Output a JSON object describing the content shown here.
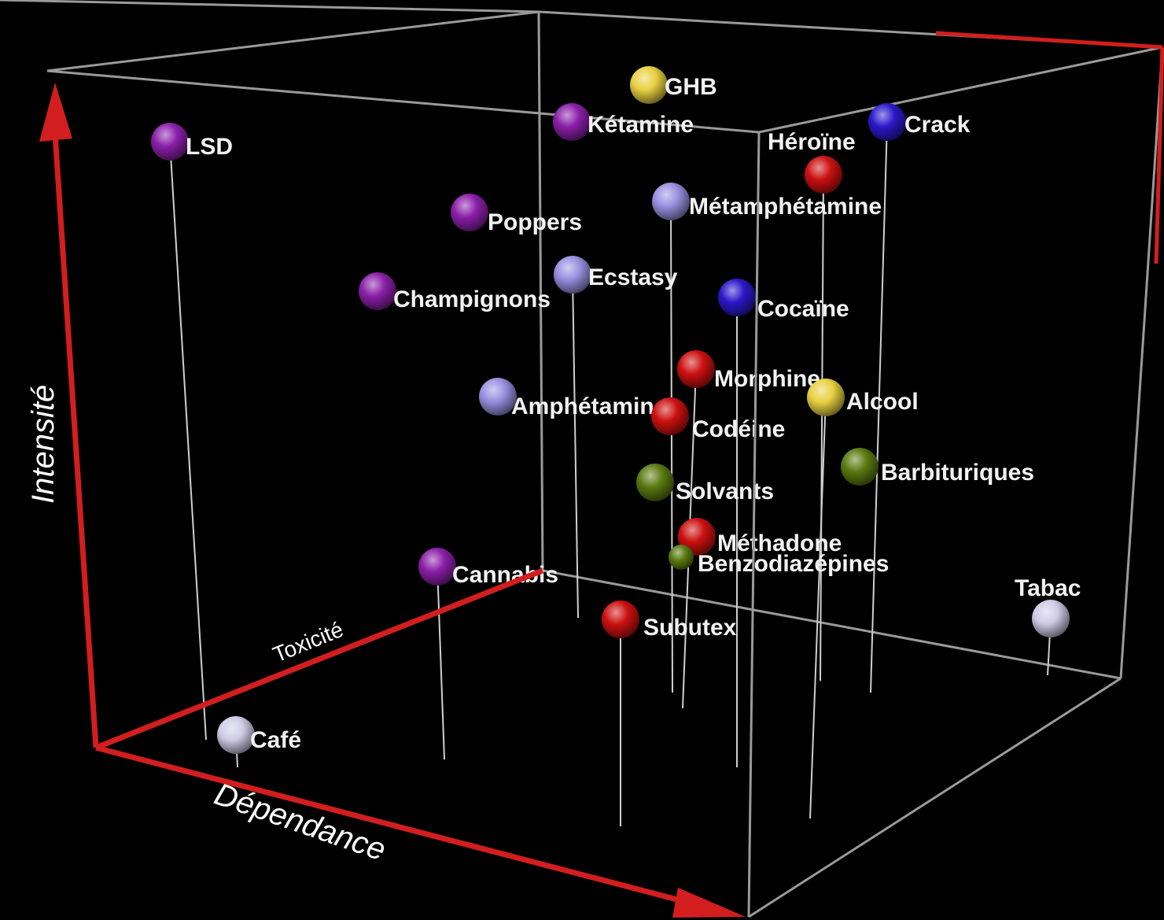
{
  "chart_data": {
    "type": "scatter3d",
    "axes": {
      "dependence": "Dépendance",
      "intensity": "Intensité",
      "toxicity": "Toxicité"
    },
    "colors": {
      "box": "#9a9a9a",
      "axis": "#d21e1e",
      "stem": "#cfcfcf",
      "purple": "#8a1fa8",
      "lavender": "#9a8fe0",
      "blue": "#2a18c8",
      "red": "#cc1010",
      "yellow": "#e8d040",
      "olive": "#5a7a10",
      "pale": "#cfcbe6"
    },
    "points": [
      {
        "name": "LSD",
        "color": "purple"
      },
      {
        "name": "Kétamine",
        "color": "purple"
      },
      {
        "name": "GHB",
        "color": "yellow"
      },
      {
        "name": "Héroïne",
        "color": "red"
      },
      {
        "name": "Crack",
        "color": "blue"
      },
      {
        "name": "Poppers",
        "color": "purple"
      },
      {
        "name": "Métamphétamine",
        "color": "lavender"
      },
      {
        "name": "Champignons",
        "color": "purple"
      },
      {
        "name": "Ecstasy",
        "color": "lavender"
      },
      {
        "name": "Cocaïne",
        "color": "blue"
      },
      {
        "name": "Morphine",
        "color": "red"
      },
      {
        "name": "Alcool",
        "color": "yellow"
      },
      {
        "name": "Amphétamines",
        "color": "lavender"
      },
      {
        "name": "Codéine",
        "color": "red"
      },
      {
        "name": "Barbituriques",
        "color": "olive"
      },
      {
        "name": "Solvants",
        "color": "olive"
      },
      {
        "name": "Méthadone",
        "color": "red"
      },
      {
        "name": "Benzodiazépines",
        "color": "olive"
      },
      {
        "name": "Cannabis",
        "color": "purple"
      },
      {
        "name": "Tabac",
        "color": "pale"
      },
      {
        "name": "Subutex",
        "color": "red"
      },
      {
        "name": "Café",
        "color": "pale"
      }
    ]
  }
}
